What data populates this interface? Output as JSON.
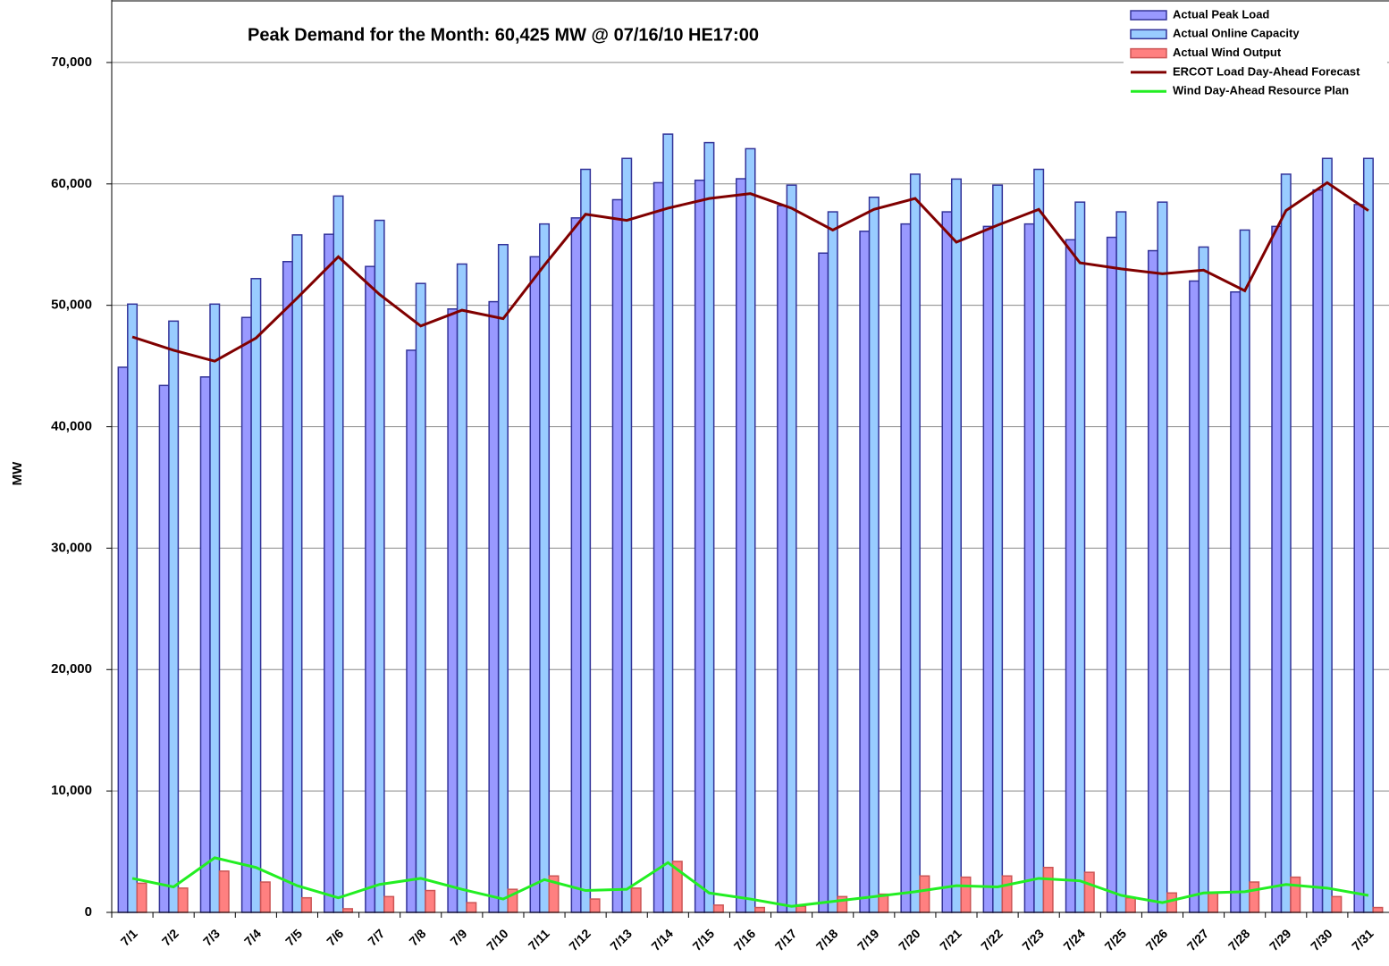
{
  "chart_data": {
    "type": "bar",
    "title": "Peak Demand for the Month: 60,425  MW @ 07/16/10  HE17:00",
    "y_label": "MW",
    "categories": [
      "7/1",
      "7/2",
      "7/3",
      "7/4",
      "7/5",
      "7/6",
      "7/7",
      "7/8",
      "7/9",
      "7/10",
      "7/11",
      "7/12",
      "7/13",
      "7/14",
      "7/15",
      "7/16",
      "7/17",
      "7/18",
      "7/19",
      "7/20",
      "7/21",
      "7/22",
      "7/23",
      "7/24",
      "7/25",
      "7/26",
      "7/27",
      "7/28",
      "7/29",
      "7/30",
      "7/31"
    ],
    "series": [
      {
        "name": "Actual Peak Load",
        "type": "bar",
        "color": "#9999ff",
        "border": "#333399",
        "values": [
          44900,
          43400,
          44100,
          49000,
          53600,
          55850,
          53200,
          46300,
          49700,
          50300,
          54000,
          57200,
          58700,
          60100,
          60300,
          60425,
          58200,
          54300,
          56100,
          56700,
          57700,
          56500,
          56700,
          55400,
          55600,
          54500,
          52000,
          51100,
          56500,
          59500,
          58300
        ]
      },
      {
        "name": "Actual Online Capacity",
        "type": "bar",
        "color": "#99ccff",
        "border": "#333399",
        "values": [
          50100,
          48700,
          50100,
          52200,
          55800,
          59000,
          57000,
          51800,
          53400,
          55000,
          56700,
          61200,
          62100,
          64100,
          63400,
          62900,
          59900,
          57700,
          58900,
          60800,
          60400,
          59900,
          61200,
          58500,
          57700,
          58500,
          54800,
          56200,
          60800,
          62100,
          62100
        ]
      },
      {
        "name": "Actual Wind Output",
        "type": "bar",
        "color": "#ff8080",
        "border": "#cc5555",
        "values": [
          2400,
          2000,
          3400,
          2500,
          1200,
          300,
          1300,
          1800,
          800,
          1900,
          3000,
          1100,
          2000,
          4200,
          600,
          400,
          500,
          1300,
          1500,
          3000,
          2900,
          3000,
          3700,
          3300,
          1200,
          1600,
          1600,
          2500,
          2900,
          1300,
          400
        ]
      },
      {
        "name": "ERCOT Load Day-Ahead Forecast",
        "type": "line",
        "color": "#800000",
        "values": [
          47400,
          46300,
          45400,
          47300,
          50600,
          54000,
          50900,
          48300,
          49600,
          48900,
          53300,
          57500,
          57000,
          58000,
          58800,
          59200,
          58000,
          56200,
          57900,
          58800,
          55200,
          56600,
          57900,
          53500,
          53000,
          52600,
          52900,
          51200,
          57800,
          60100,
          57800
        ]
      },
      {
        "name": "Wind Day-Ahead Resource Plan",
        "type": "line",
        "color": "#22ee22",
        "values": [
          2800,
          2100,
          4500,
          3700,
          2200,
          1200,
          2300,
          2800,
          1900,
          1100,
          2700,
          1800,
          1900,
          4100,
          1600,
          1100,
          500,
          900,
          1300,
          1700,
          2200,
          2100,
          2800,
          2600,
          1400,
          800,
          1600,
          1700,
          2300,
          2000,
          1400
        ]
      }
    ],
    "ylim": [
      0,
      75000
    ],
    "yticks": [
      0,
      {
        "value": 10000,
        "label": "10,000"
      },
      {
        "value": 20000,
        "label": "20,000"
      },
      {
        "value": 30000,
        "label": "30,000"
      },
      {
        "value": 40000,
        "label": "40,000"
      },
      {
        "value": 50000,
        "label": "50,000"
      },
      {
        "value": 60000,
        "label": "60,000"
      },
      {
        "value": 70000,
        "label": "70,000"
      }
    ],
    "grid": true,
    "legend": "top-right"
  }
}
